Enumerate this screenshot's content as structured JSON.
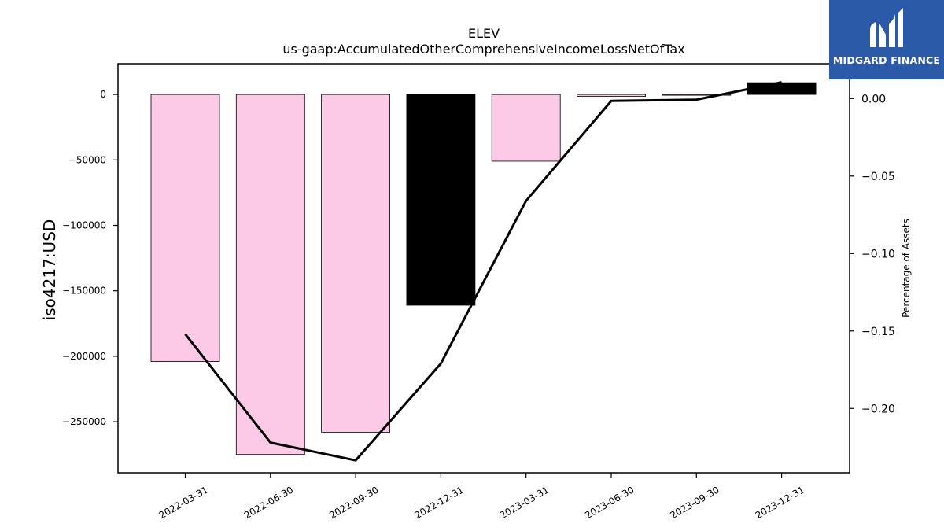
{
  "chart_data": {
    "type": "bar",
    "title": "ELEV",
    "subtitle": "us-gaap:AccumulatedOtherComprehensiveIncomeLossNetOfTax",
    "ylabel": "iso4217:USD",
    "y2label": "Percentage of Assets",
    "categories": [
      "2022-03-31",
      "2022-06-30",
      "2022-09-30",
      "2022-12-31",
      "2023-03-31",
      "2023-06-30",
      "2023-09-30",
      "2023-12-31"
    ],
    "values": [
      -204000,
      -275000,
      -258000,
      -161000,
      -51000,
      -1500,
      -500,
      9000
    ],
    "bar_colors": [
      "#fccae6",
      "#fccae6",
      "#fccae6",
      "#000000",
      "#fccae6",
      "#fccae6",
      "#fccae6",
      "#000000"
    ],
    "ylim": [
      -289000,
      23500
    ],
    "yticks": [
      0,
      -50000,
      -100000,
      -150000,
      -200000,
      -250000
    ],
    "ytick_labels": [
      "0",
      "−50000",
      "−100000",
      "−150000",
      "−200000",
      "−250000"
    ],
    "line": {
      "values": [
        -0.152,
        -0.222,
        -0.2335,
        -0.171,
        -0.066,
        -0.0015,
        -0.0007,
        0.0105
      ],
      "color": "#000000"
    },
    "y2lim": [
      -0.2415,
      0.0225
    ],
    "y2ticks": [
      0.0,
      -0.05,
      -0.1,
      -0.15,
      -0.2
    ],
    "y2tick_labels": [
      "0.00",
      "−0.05",
      "−0.10",
      "−0.15",
      "−0.20"
    ],
    "grid": false
  },
  "logo": {
    "text": "MIDGARD FINANCE"
  }
}
